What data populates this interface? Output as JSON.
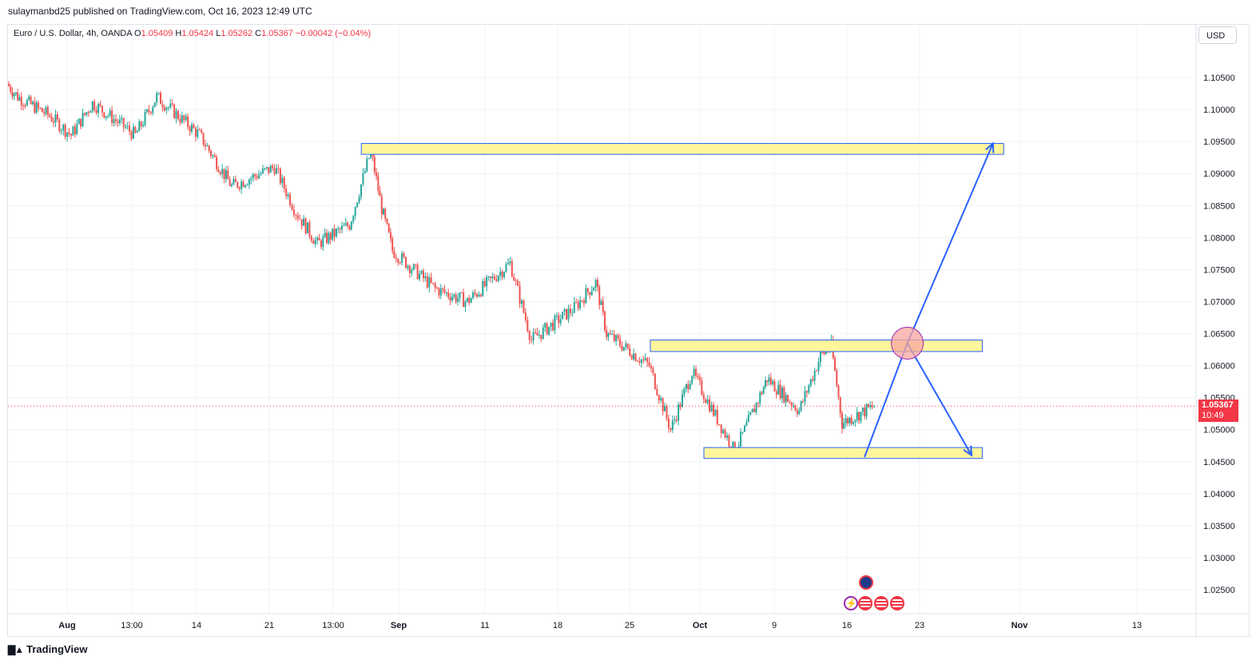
{
  "publish_info": "sulaymanbd25 published on TradingView.com, Oct 16, 2023 12:49 UTC",
  "legend": {
    "symbol": "Euro / U.S. Dollar, 4h, OANDA",
    "o_label": "O",
    "o_value": "1.05409",
    "h_label": "H",
    "h_value": "1.05424",
    "l_label": "L",
    "l_value": "1.05262",
    "c_label": "C",
    "c_value": "1.05367",
    "change": "−0.00042 (−0.04%)"
  },
  "currency": "USD",
  "last_price": {
    "price": "1.05367",
    "countdown": "10:49"
  },
  "footer": {
    "brand": "TradingView",
    "logo_icon": "tradingview-logo-icon"
  },
  "events": [
    {
      "name": "eu-flag-event-icon"
    },
    {
      "name": "lightning-event-icon"
    },
    {
      "name": "us-flag-event-icon"
    },
    {
      "name": "us-flag-event-icon"
    },
    {
      "name": "us-flag-event-icon"
    }
  ],
  "colors": {
    "up": "#26a69a",
    "down": "#ef5350",
    "zone_fill": "#fff59d",
    "zone_border": "#2962ff",
    "arrow": "#2962ff",
    "circle": "#f7a6a0",
    "price_line": "#f23645",
    "price_tag": "#f23645"
  },
  "chart_data": {
    "type": "candlestick",
    "y_ticks": [
      "1.10500",
      "1.10000",
      "1.09500",
      "1.09000",
      "1.08500",
      "1.08000",
      "1.07500",
      "1.07000",
      "1.06500",
      "1.06000",
      "1.05500",
      "1.05000",
      "1.04500",
      "1.04000",
      "1.03500",
      "1.03000",
      "1.02500"
    ],
    "x_ticks": [
      "Aug",
      "13:00",
      "14",
      "21",
      "13:00",
      "Sep",
      "11",
      "18",
      "25",
      "Oct",
      "9",
      "16",
      "23",
      "Nov",
      "13"
    ],
    "ylim": [
      1.0205,
      1.1105
    ],
    "price_line": 1.05367,
    "close_path": [
      {
        "t": "Jul 27",
        "close": 1.104
      },
      {
        "t": "Jul 28",
        "close": 1.102
      },
      {
        "t": "Jul 31",
        "close": 1.099
      },
      {
        "t": "Aug 2",
        "close": 1.096
      },
      {
        "t": "Aug 4",
        "close": 1.101
      },
      {
        "t": "Aug 8",
        "close": 1.096
      },
      {
        "t": "Aug 10",
        "close": 1.102
      },
      {
        "t": "Aug 14",
        "close": 1.096
      },
      {
        "t": "Aug 17",
        "close": 1.088
      },
      {
        "t": "Aug 21",
        "close": 1.091
      },
      {
        "t": "Aug 23",
        "close": 1.084
      },
      {
        "t": "Aug 25",
        "close": 1.079
      },
      {
        "t": "Aug 28",
        "close": 1.082
      },
      {
        "t": "Aug 30",
        "close": 1.0935
      },
      {
        "t": "Aug 31",
        "close": 1.0845
      },
      {
        "t": "Sep 1",
        "close": 1.078
      },
      {
        "t": "Sep 5",
        "close": 1.072
      },
      {
        "t": "Sep 8",
        "close": 1.07
      },
      {
        "t": "Sep 12",
        "close": 1.076
      },
      {
        "t": "Sep 14",
        "close": 1.064
      },
      {
        "t": "Sep 18",
        "close": 1.069
      },
      {
        "t": "Sep 20",
        "close": 1.073
      },
      {
        "t": "Sep 21",
        "close": 1.065
      },
      {
        "t": "Sep 25",
        "close": 1.06
      },
      {
        "t": "Sep 27",
        "close": 1.05
      },
      {
        "t": "Sep 29",
        "close": 1.059
      },
      {
        "t": "Oct 3",
        "close": 1.0465
      },
      {
        "t": "Oct 5",
        "close": 1.054
      },
      {
        "t": "Oct 6",
        "close": 1.058
      },
      {
        "t": "Oct 9",
        "close": 1.053
      },
      {
        "t": "Oct 11",
        "close": 1.0615
      },
      {
        "t": "Oct 12",
        "close": 1.063
      },
      {
        "t": "Oct 13",
        "close": 1.051
      },
      {
        "t": "Oct 16",
        "close": 1.0537
      }
    ],
    "zones": [
      {
        "name": "resistance-zone-top",
        "from": "Aug 29",
        "to": "Oct 28",
        "low": 1.093,
        "high": 1.0947
      },
      {
        "name": "resistance-zone-mid",
        "from": "Sep 25",
        "to": "Oct 26",
        "low": 1.0622,
        "high": 1.064
      },
      {
        "name": "support-zone-bottom",
        "from": "Sep 30",
        "to": "Oct 26",
        "low": 1.0455,
        "high": 1.0472
      }
    ],
    "projection": [
      {
        "t": "Oct 15",
        "price": 1.0457
      },
      {
        "t": "Oct 19",
        "price": 1.0635
      },
      {
        "t": "Oct 27",
        "price": 1.0947
      },
      {
        "t": "Oct 19",
        "price": 1.0635
      },
      {
        "t": "Oct 25",
        "price": 1.046
      }
    ],
    "circle_marker": {
      "t": "Oct 19",
      "price": 1.0635
    }
  }
}
